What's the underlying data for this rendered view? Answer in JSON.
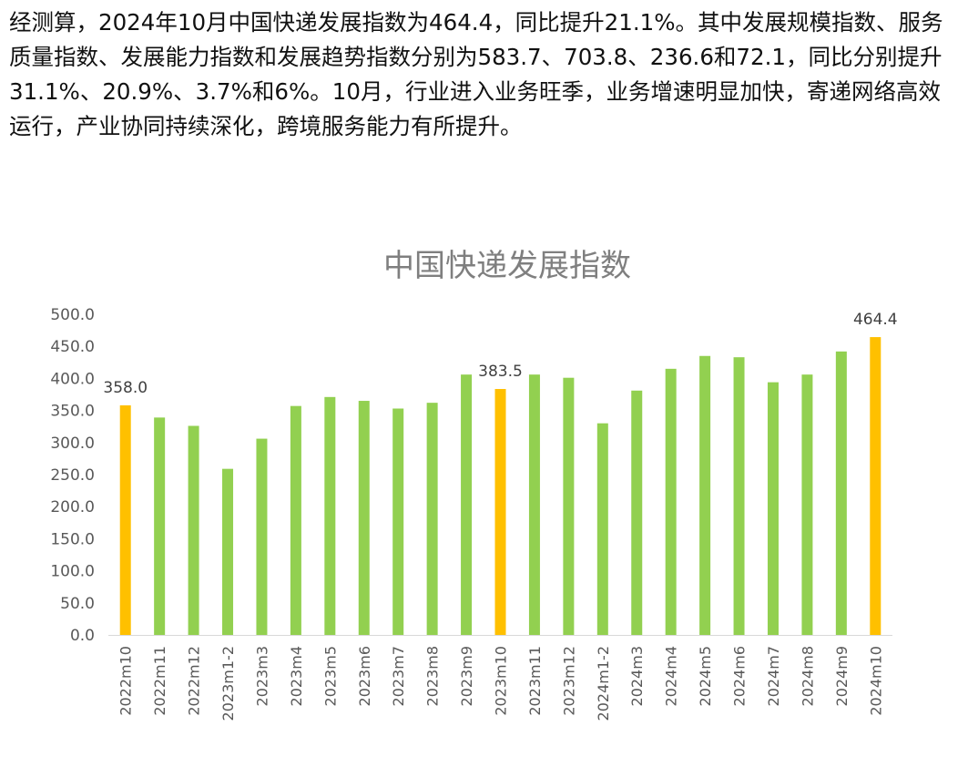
{
  "article": {
    "paragraph": "经测算，2024年10月中国快递发展指数为464.4，同比提升21.1%。其中发展规模指数、服务质量指数、发展能力指数和发展趋势指数分别为583.7、703.8、236.6和72.1，同比分别提升31.1%、20.9%、3.7%和6%。10月，行业进入业务旺季，业务增速明显加快，寄递网络高效运行，产业协同持续深化，跨境服务能力有所提升。"
  },
  "colors": {
    "bar_default": "#92d050",
    "bar_highlight": "#ffc000",
    "axis": "#d9d9d9"
  },
  "chart_data": {
    "type": "bar",
    "title": "中国快递发展指数",
    "xlabel": "",
    "ylabel": "",
    "ylim": [
      0,
      500
    ],
    "yticks": [
      "0.0",
      "50.0",
      "100.0",
      "150.0",
      "200.0",
      "250.0",
      "300.0",
      "350.0",
      "400.0",
      "450.0",
      "500.0"
    ],
    "grid": false,
    "legend": "none",
    "categories": [
      "2022m10",
      "2022m11",
      "2022m12",
      "2023m1-2",
      "2023m3",
      "2023m4",
      "2023m5",
      "2023m6",
      "2023m7",
      "2023m8",
      "2023m9",
      "2023m10",
      "2023m11",
      "2023m12",
      "2024m1-2",
      "2024m3",
      "2024m4",
      "2024m5",
      "2024m6",
      "2024m7",
      "2024m8",
      "2024m9",
      "2024m10"
    ],
    "values": [
      358.0,
      339,
      326,
      259,
      306,
      357,
      371,
      365,
      353,
      362,
      406,
      383.5,
      406,
      401,
      330,
      381,
      415,
      435,
      433,
      394,
      406,
      442,
      464.4
    ],
    "highlighted": [
      "2022m10",
      "2023m10",
      "2024m10"
    ],
    "data_labels": [
      {
        "category": "2022m10",
        "text": "358.0"
      },
      {
        "category": "2023m10",
        "text": "383.5"
      },
      {
        "category": "2024m10",
        "text": "464.4"
      }
    ]
  }
}
